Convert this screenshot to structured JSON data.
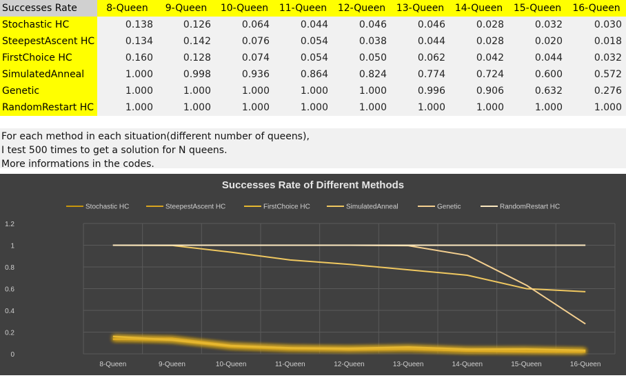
{
  "table": {
    "corner": "Successes Rate",
    "columns": [
      "8-Queen",
      "9-Queen",
      "10-Queen",
      "11-Queen",
      "12-Queen",
      "13-Queen",
      "14-Queen",
      "15-Queen",
      "16-Queen"
    ],
    "rows": [
      {
        "label": "Stochastic HC",
        "values": [
          "0.138",
          "0.126",
          "0.064",
          "0.044",
          "0.046",
          "0.046",
          "0.028",
          "0.032",
          "0.030"
        ]
      },
      {
        "label": "SteepestAscent HC",
        "values": [
          "0.134",
          "0.142",
          "0.076",
          "0.054",
          "0.038",
          "0.044",
          "0.028",
          "0.020",
          "0.018"
        ]
      },
      {
        "label": "FirstChoice HC",
        "values": [
          "0.160",
          "0.128",
          "0.074",
          "0.054",
          "0.050",
          "0.062",
          "0.042",
          "0.044",
          "0.032"
        ]
      },
      {
        "label": "SimulatedAnneal",
        "values": [
          "1.000",
          "0.998",
          "0.936",
          "0.864",
          "0.824",
          "0.774",
          "0.724",
          "0.600",
          "0.572"
        ]
      },
      {
        "label": "Genetic",
        "values": [
          "1.000",
          "1.000",
          "1.000",
          "1.000",
          "1.000",
          "0.996",
          "0.906",
          "0.632",
          "0.276"
        ]
      },
      {
        "label": "RandomRestart HC",
        "values": [
          "1.000",
          "1.000",
          "1.000",
          "1.000",
          "1.000",
          "1.000",
          "1.000",
          "1.000",
          "1.000"
        ]
      }
    ]
  },
  "notes": [
    "For each method in each situation(different number of queens),",
    "I test 500 times to get a solution for N queens.",
    "More informations in the codes."
  ],
  "chart_data": {
    "type": "line",
    "title": "Successes Rate of Different Methods",
    "categories": [
      "8-Queen",
      "9-Queen",
      "10-Queen",
      "11-Queen",
      "12-Queen",
      "13-Queen",
      "14-Queen",
      "15-Queen",
      "16-Queen"
    ],
    "ylim": [
      0,
      1.2
    ],
    "yticks": [
      "0",
      "0.2",
      "0.4",
      "0.6",
      "0.8",
      "1",
      "1.2"
    ],
    "grid": true,
    "legend": "top",
    "background": "#404040",
    "series": [
      {
        "name": "Stochastic HC",
        "color": "#c8960c",
        "glow": true,
        "values": [
          0.138,
          0.126,
          0.064,
          0.044,
          0.046,
          0.046,
          0.028,
          0.032,
          0.03
        ]
      },
      {
        "name": "SteepestAscent HC",
        "color": "#d9a520",
        "glow": true,
        "values": [
          0.134,
          0.142,
          0.076,
          0.054,
          0.038,
          0.044,
          0.028,
          0.02,
          0.018
        ]
      },
      {
        "name": "FirstChoice HC",
        "color": "#e6b830",
        "glow": true,
        "values": [
          0.16,
          0.128,
          0.074,
          0.054,
          0.05,
          0.062,
          0.042,
          0.044,
          0.032
        ]
      },
      {
        "name": "SimulatedAnneal",
        "color": "#f0c860",
        "glow": false,
        "values": [
          1.0,
          0.998,
          0.936,
          0.864,
          0.824,
          0.774,
          0.724,
          0.6,
          0.572
        ]
      },
      {
        "name": "Genetic",
        "color": "#f5d090",
        "glow": false,
        "values": [
          1.0,
          1.0,
          1.0,
          1.0,
          1.0,
          0.996,
          0.906,
          0.632,
          0.276
        ]
      },
      {
        "name": "RandomRestart HC",
        "color": "#fbe8c0",
        "glow": false,
        "values": [
          1.0,
          1.0,
          1.0,
          1.0,
          1.0,
          1.0,
          1.0,
          1.0,
          1.0
        ]
      }
    ]
  }
}
